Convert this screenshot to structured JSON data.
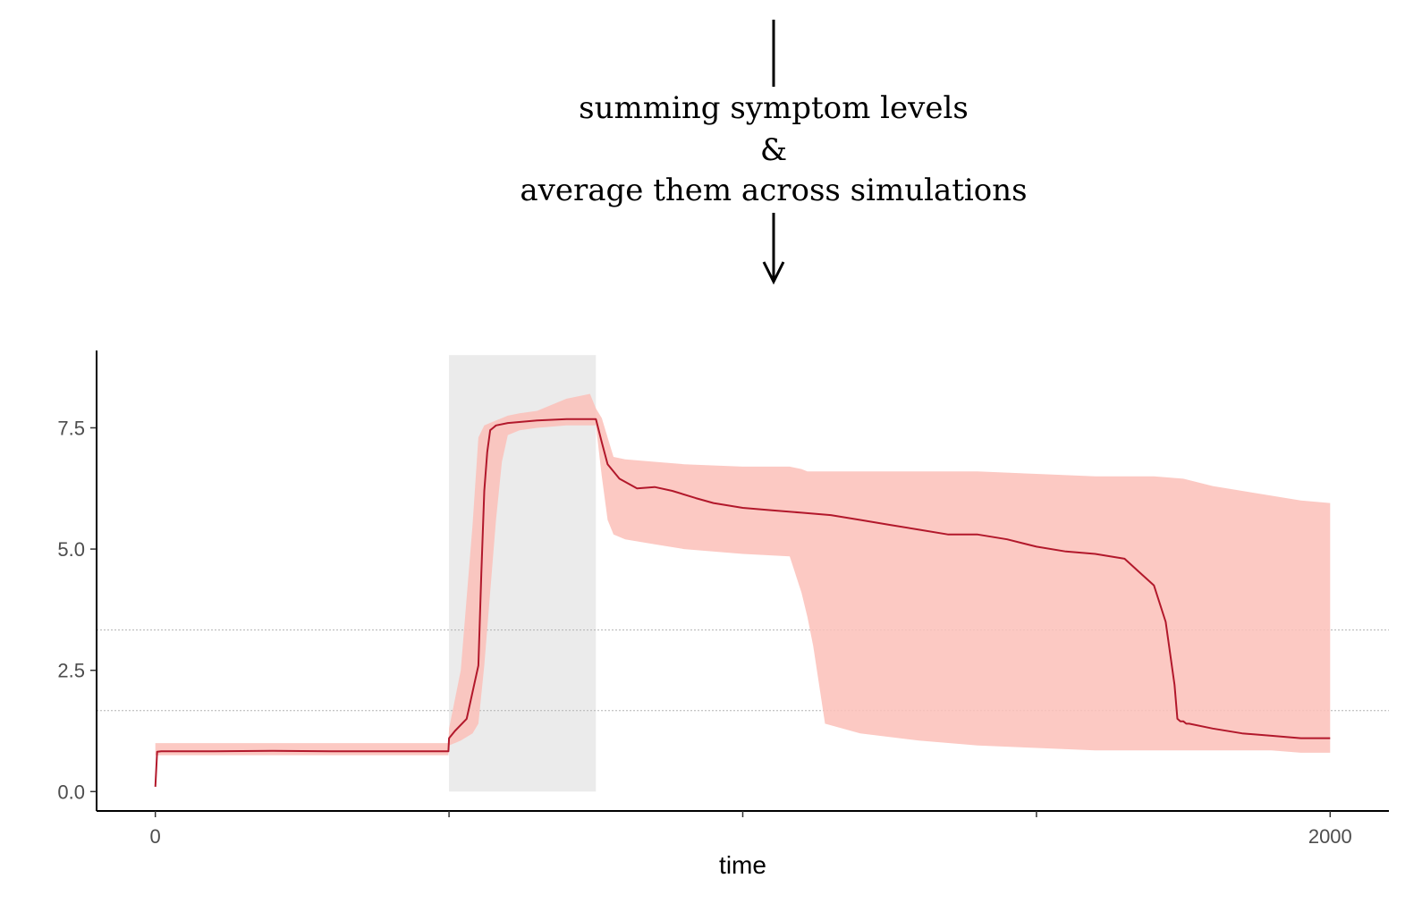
{
  "annotation": {
    "line1": "summing symptom levels",
    "line2": "&",
    "line3": "average them across simulations"
  },
  "chart_data": {
    "type": "line",
    "xlabel": "time",
    "ylabel": "",
    "xlim": [
      -100,
      2100
    ],
    "ylim": [
      -0.4,
      9.5
    ],
    "x_ticks": [
      {
        "value": 0,
        "label": "0"
      },
      {
        "value": 500,
        "label": ""
      },
      {
        "value": 1000,
        "label": ""
      },
      {
        "value": 1500,
        "label": ""
      },
      {
        "value": 2000,
        "label": "2000"
      }
    ],
    "y_ticks": [
      {
        "value": 0,
        "label": "0.0"
      },
      {
        "value": 2.5,
        "label": "2.5"
      },
      {
        "value": 5,
        "label": "5.0"
      },
      {
        "value": 7.5,
        "label": "7.5"
      }
    ],
    "reference_lines": [
      1.67,
      3.33
    ],
    "shaded_region": {
      "x_start": 500,
      "x_end": 750,
      "y_top": 9.0
    },
    "colors": {
      "line": "#b2182b",
      "band": "#fcbfb8",
      "shade": "#ebebeb",
      "refline": "#b3b3b3"
    },
    "series": [
      {
        "x": [
          0,
          3,
          10,
          100,
          200,
          300,
          400,
          499,
          500,
          510,
          530,
          550,
          555,
          560,
          565,
          570,
          575,
          580,
          600,
          650,
          700,
          740,
          750,
          760,
          770,
          790,
          820,
          850,
          880,
          920,
          950,
          1000,
          1050,
          1100,
          1150,
          1200,
          1250,
          1300,
          1350,
          1400,
          1450,
          1500,
          1550,
          1600,
          1650,
          1700,
          1720,
          1735,
          1740,
          1745,
          1750,
          1755,
          1760,
          1800,
          1850,
          1900,
          1950,
          2000
        ],
        "y": [
          0.1,
          0.82,
          0.83,
          0.83,
          0.84,
          0.83,
          0.83,
          0.83,
          1.1,
          1.25,
          1.5,
          2.6,
          4.5,
          6.2,
          7.0,
          7.45,
          7.5,
          7.55,
          7.6,
          7.65,
          7.68,
          7.68,
          7.68,
          7.2,
          6.75,
          6.45,
          6.25,
          6.28,
          6.2,
          6.05,
          5.95,
          5.85,
          5.8,
          5.75,
          5.7,
          5.6,
          5.5,
          5.4,
          5.3,
          5.3,
          5.2,
          5.05,
          4.95,
          4.9,
          4.8,
          4.25,
          3.5,
          2.2,
          1.5,
          1.45,
          1.45,
          1.4,
          1.4,
          1.3,
          1.2,
          1.15,
          1.1,
          1.1
        ]
      }
    ],
    "band": {
      "x": [
        0,
        3,
        10,
        300,
        499,
        500,
        520,
        540,
        550,
        560,
        580,
        590,
        600,
        620,
        650,
        700,
        740,
        750,
        760,
        770,
        780,
        800,
        850,
        900,
        1000,
        1080,
        1100,
        1110,
        1120,
        1140,
        1200,
        1300,
        1400,
        1500,
        1600,
        1700,
        1750,
        1800,
        1850,
        1900,
        1950,
        2000
      ],
      "lower": [
        0.75,
        0.75,
        0.75,
        0.75,
        0.75,
        0.95,
        1.05,
        1.2,
        1.4,
        2.6,
        5.6,
        6.8,
        7.35,
        7.45,
        7.5,
        7.55,
        7.55,
        7.55,
        6.5,
        5.6,
        5.3,
        5.2,
        5.1,
        5.0,
        4.9,
        4.85,
        4.1,
        3.6,
        3.0,
        1.4,
        1.2,
        1.05,
        0.95,
        0.9,
        0.85,
        0.85,
        0.85,
        0.85,
        0.85,
        0.85,
        0.8,
        0.8
      ],
      "upper": [
        1.0,
        1.0,
        1.0,
        1.0,
        1.0,
        1.3,
        2.5,
        5.5,
        7.3,
        7.55,
        7.65,
        7.7,
        7.75,
        7.8,
        7.85,
        8.1,
        8.2,
        7.9,
        7.7,
        7.3,
        6.9,
        6.85,
        6.8,
        6.75,
        6.7,
        6.7,
        6.65,
        6.6,
        6.6,
        6.6,
        6.6,
        6.6,
        6.6,
        6.55,
        6.5,
        6.5,
        6.45,
        6.3,
        6.2,
        6.1,
        6.0,
        5.95
      ]
    }
  }
}
